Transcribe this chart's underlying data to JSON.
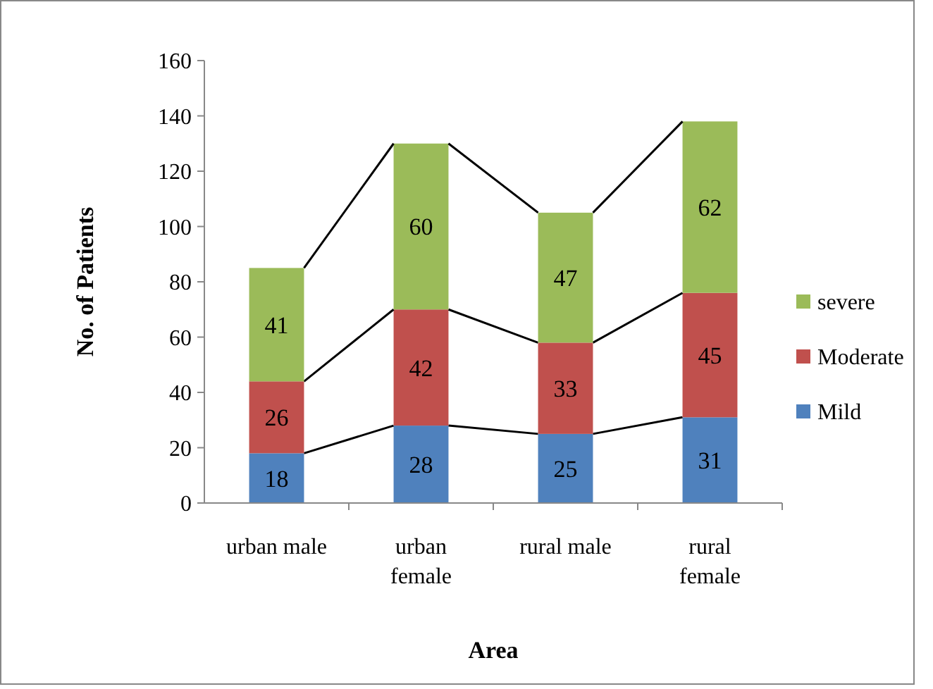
{
  "chart_data": {
    "type": "bar",
    "stacked": true,
    "xlabel": "Area",
    "ylabel": "No. of Patients",
    "categories": [
      "urban male",
      "urban female",
      "rural male",
      "rural female"
    ],
    "series": [
      {
        "name": "Mild",
        "color": "#4f81bd",
        "values": [
          18,
          28,
          25,
          31
        ]
      },
      {
        "name": "Moderate",
        "color": "#c0504d",
        "values": [
          26,
          42,
          33,
          45
        ]
      },
      {
        "name": "severe",
        "color": "#9bbb59",
        "values": [
          41,
          60,
          47,
          62
        ]
      }
    ],
    "ylim": [
      0,
      160
    ],
    "yticks": [
      0,
      20,
      40,
      60,
      80,
      100,
      120,
      140,
      160
    ],
    "grid": false,
    "legend": "right",
    "data_labels": true
  }
}
